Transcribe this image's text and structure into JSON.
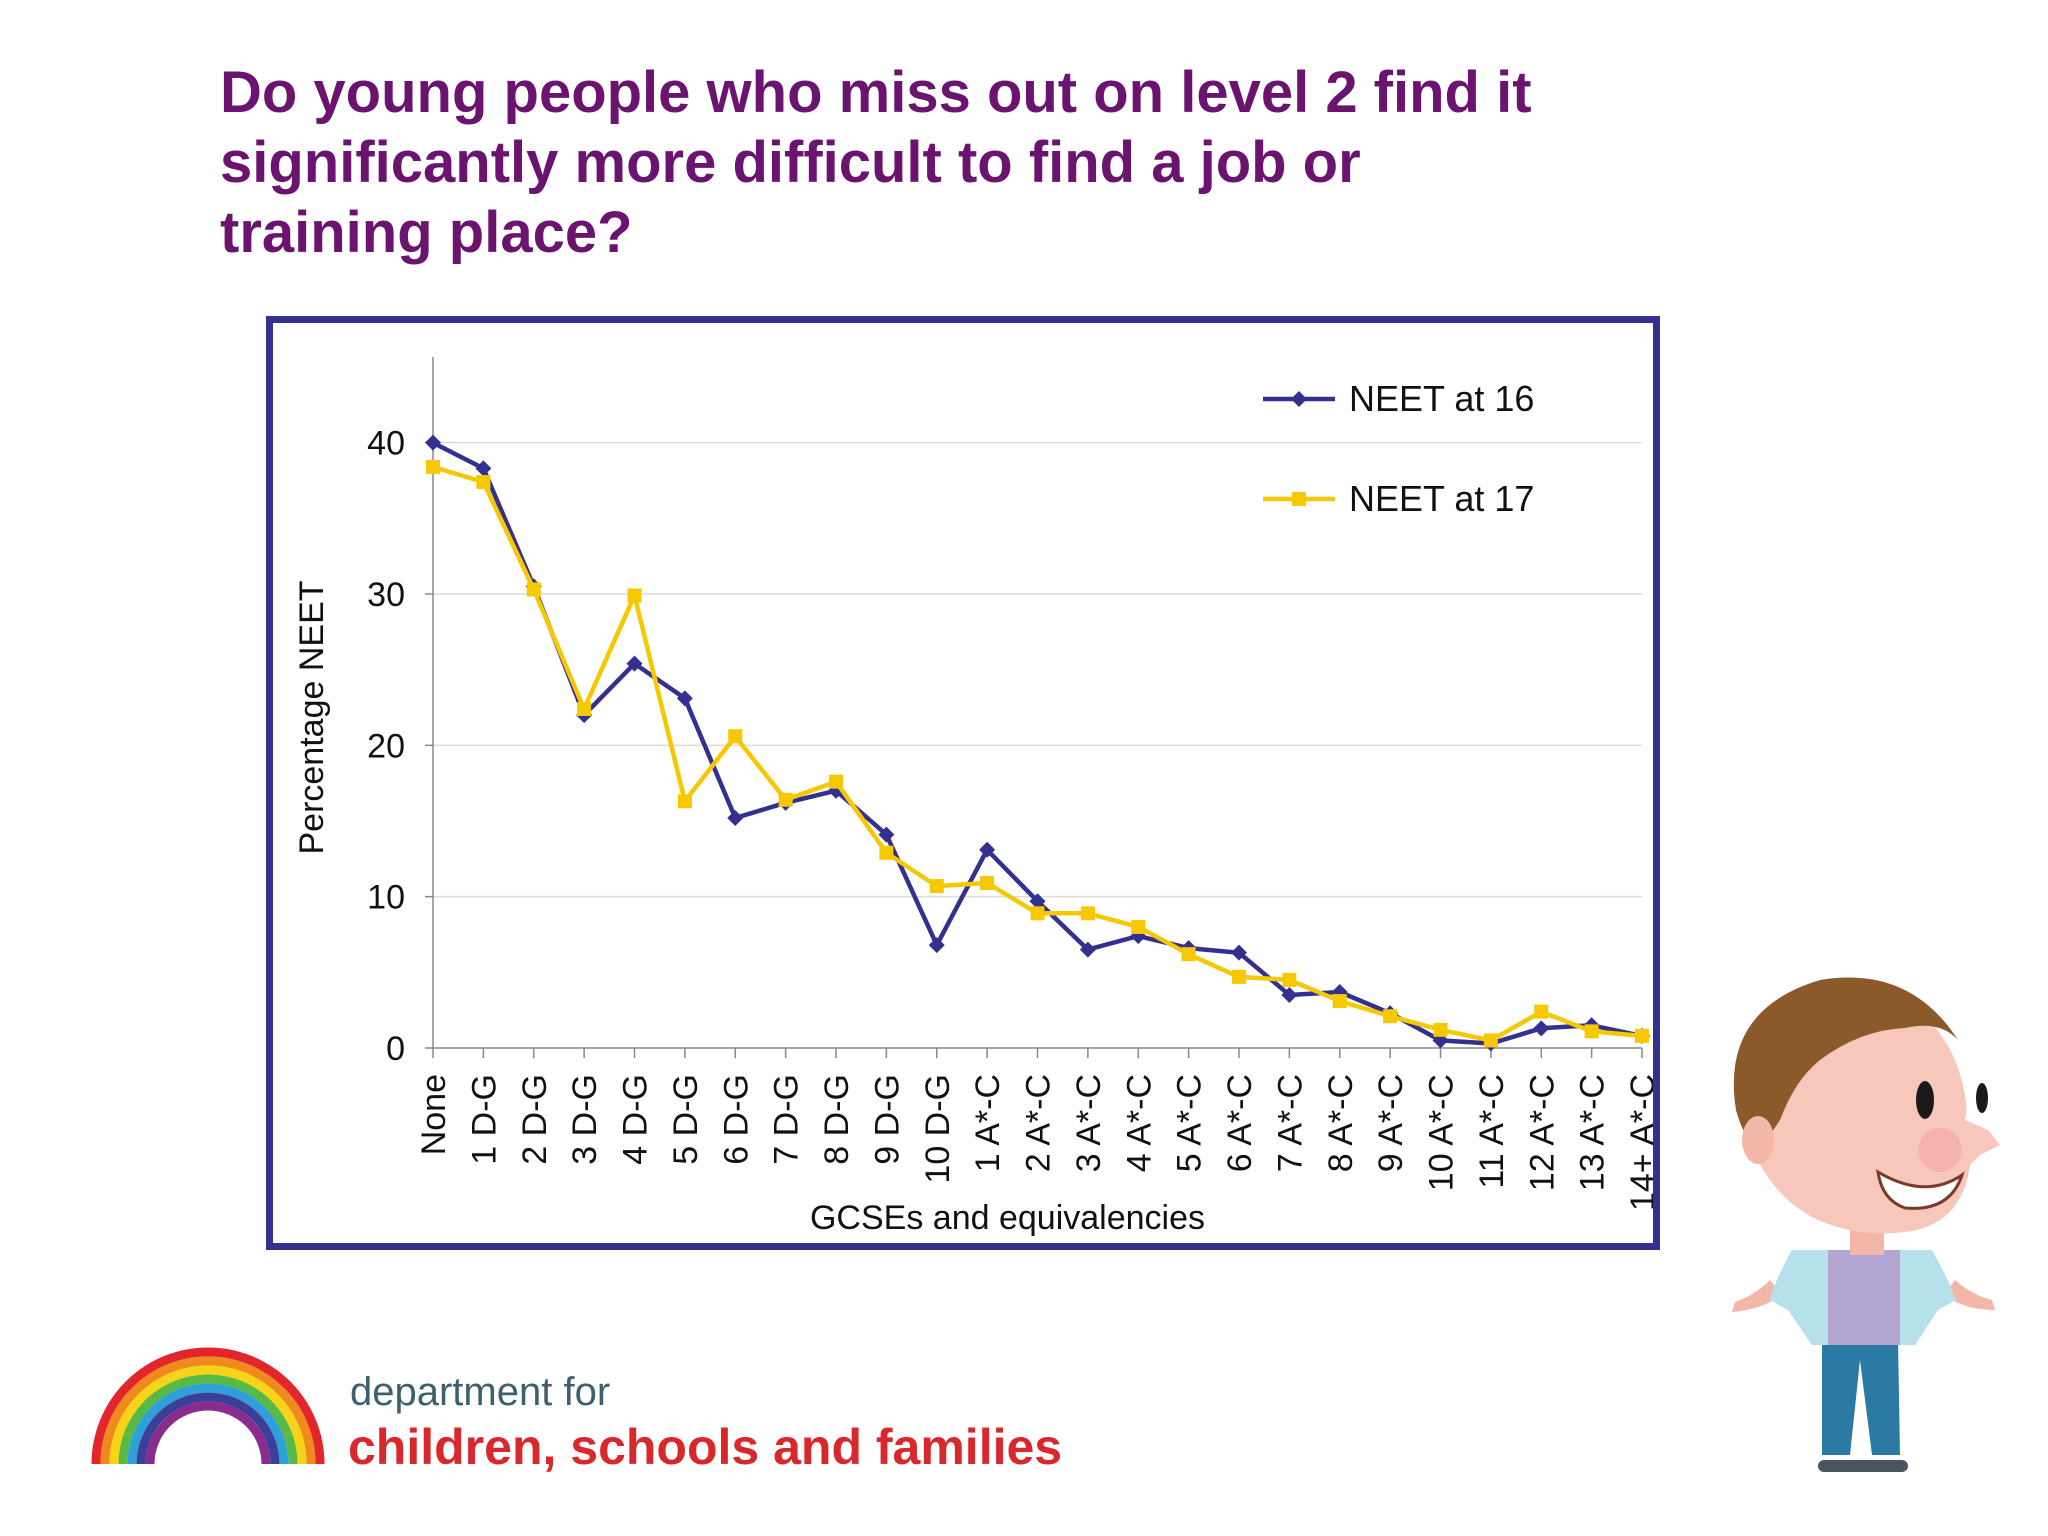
{
  "slide": {
    "title_lines": [
      "Do young people who miss out on level 2 find it",
      "significantly more difficult to find a job or",
      "training place?"
    ],
    "department": {
      "line1": "department for",
      "line2": "children, schools and families"
    }
  },
  "colors": {
    "title": "#6a1470",
    "frame": "#33308f",
    "series1": "#33308f",
    "series2": "#f5c800",
    "dept_line1": "#3e5f70",
    "dept_line2": "#d8282c"
  },
  "chart_data": {
    "type": "line",
    "title": "",
    "xlabel": "GCSEs and equivalencies",
    "ylabel": "Percentage NEET",
    "ylim": [
      0,
      45
    ],
    "yticks": [
      0,
      10,
      20,
      30,
      40
    ],
    "grid": true,
    "legend_position": "top-right",
    "categories": [
      "None",
      "1 D-G",
      "2 D-G",
      "3 D-G",
      "4 D-G",
      "5 D-G",
      "6 D-G",
      "7 D-G",
      "8 D-G",
      "9 D-G",
      "10 D-G",
      "1 A*-C",
      "2 A*-C",
      "3 A*-C",
      "4 A*-C",
      "5 A*-C",
      "6 A*-C",
      "7 A*-C",
      "8 A*-C",
      "9 A*-C",
      "10 A*-C",
      "11 A*-C",
      "12 A*-C",
      "13 A*-C",
      "14+ A*-C"
    ],
    "series": [
      {
        "name": "NEET at 16",
        "marker": "diamond",
        "color": "#33308f",
        "values": [
          40,
          38.3,
          30.5,
          22,
          25.4,
          23.1,
          15.2,
          16.2,
          17,
          14.1,
          6.8,
          13.1,
          9.7,
          6.5,
          7.4,
          6.6,
          6.3,
          3.5,
          3.7,
          2.3,
          0.5,
          0.3,
          1.3,
          1.5,
          0.8
        ]
      },
      {
        "name": "NEET at 17",
        "marker": "square",
        "color": "#f5c800",
        "values": [
          38.4,
          37.4,
          30.3,
          22.4,
          29.9,
          16.3,
          20.6,
          16.4,
          17.6,
          12.9,
          10.7,
          10.9,
          8.9,
          8.9,
          8,
          6.2,
          4.7,
          4.5,
          3.1,
          2.1,
          1.2,
          0.5,
          2.4,
          1.1,
          0.8
        ]
      }
    ]
  }
}
